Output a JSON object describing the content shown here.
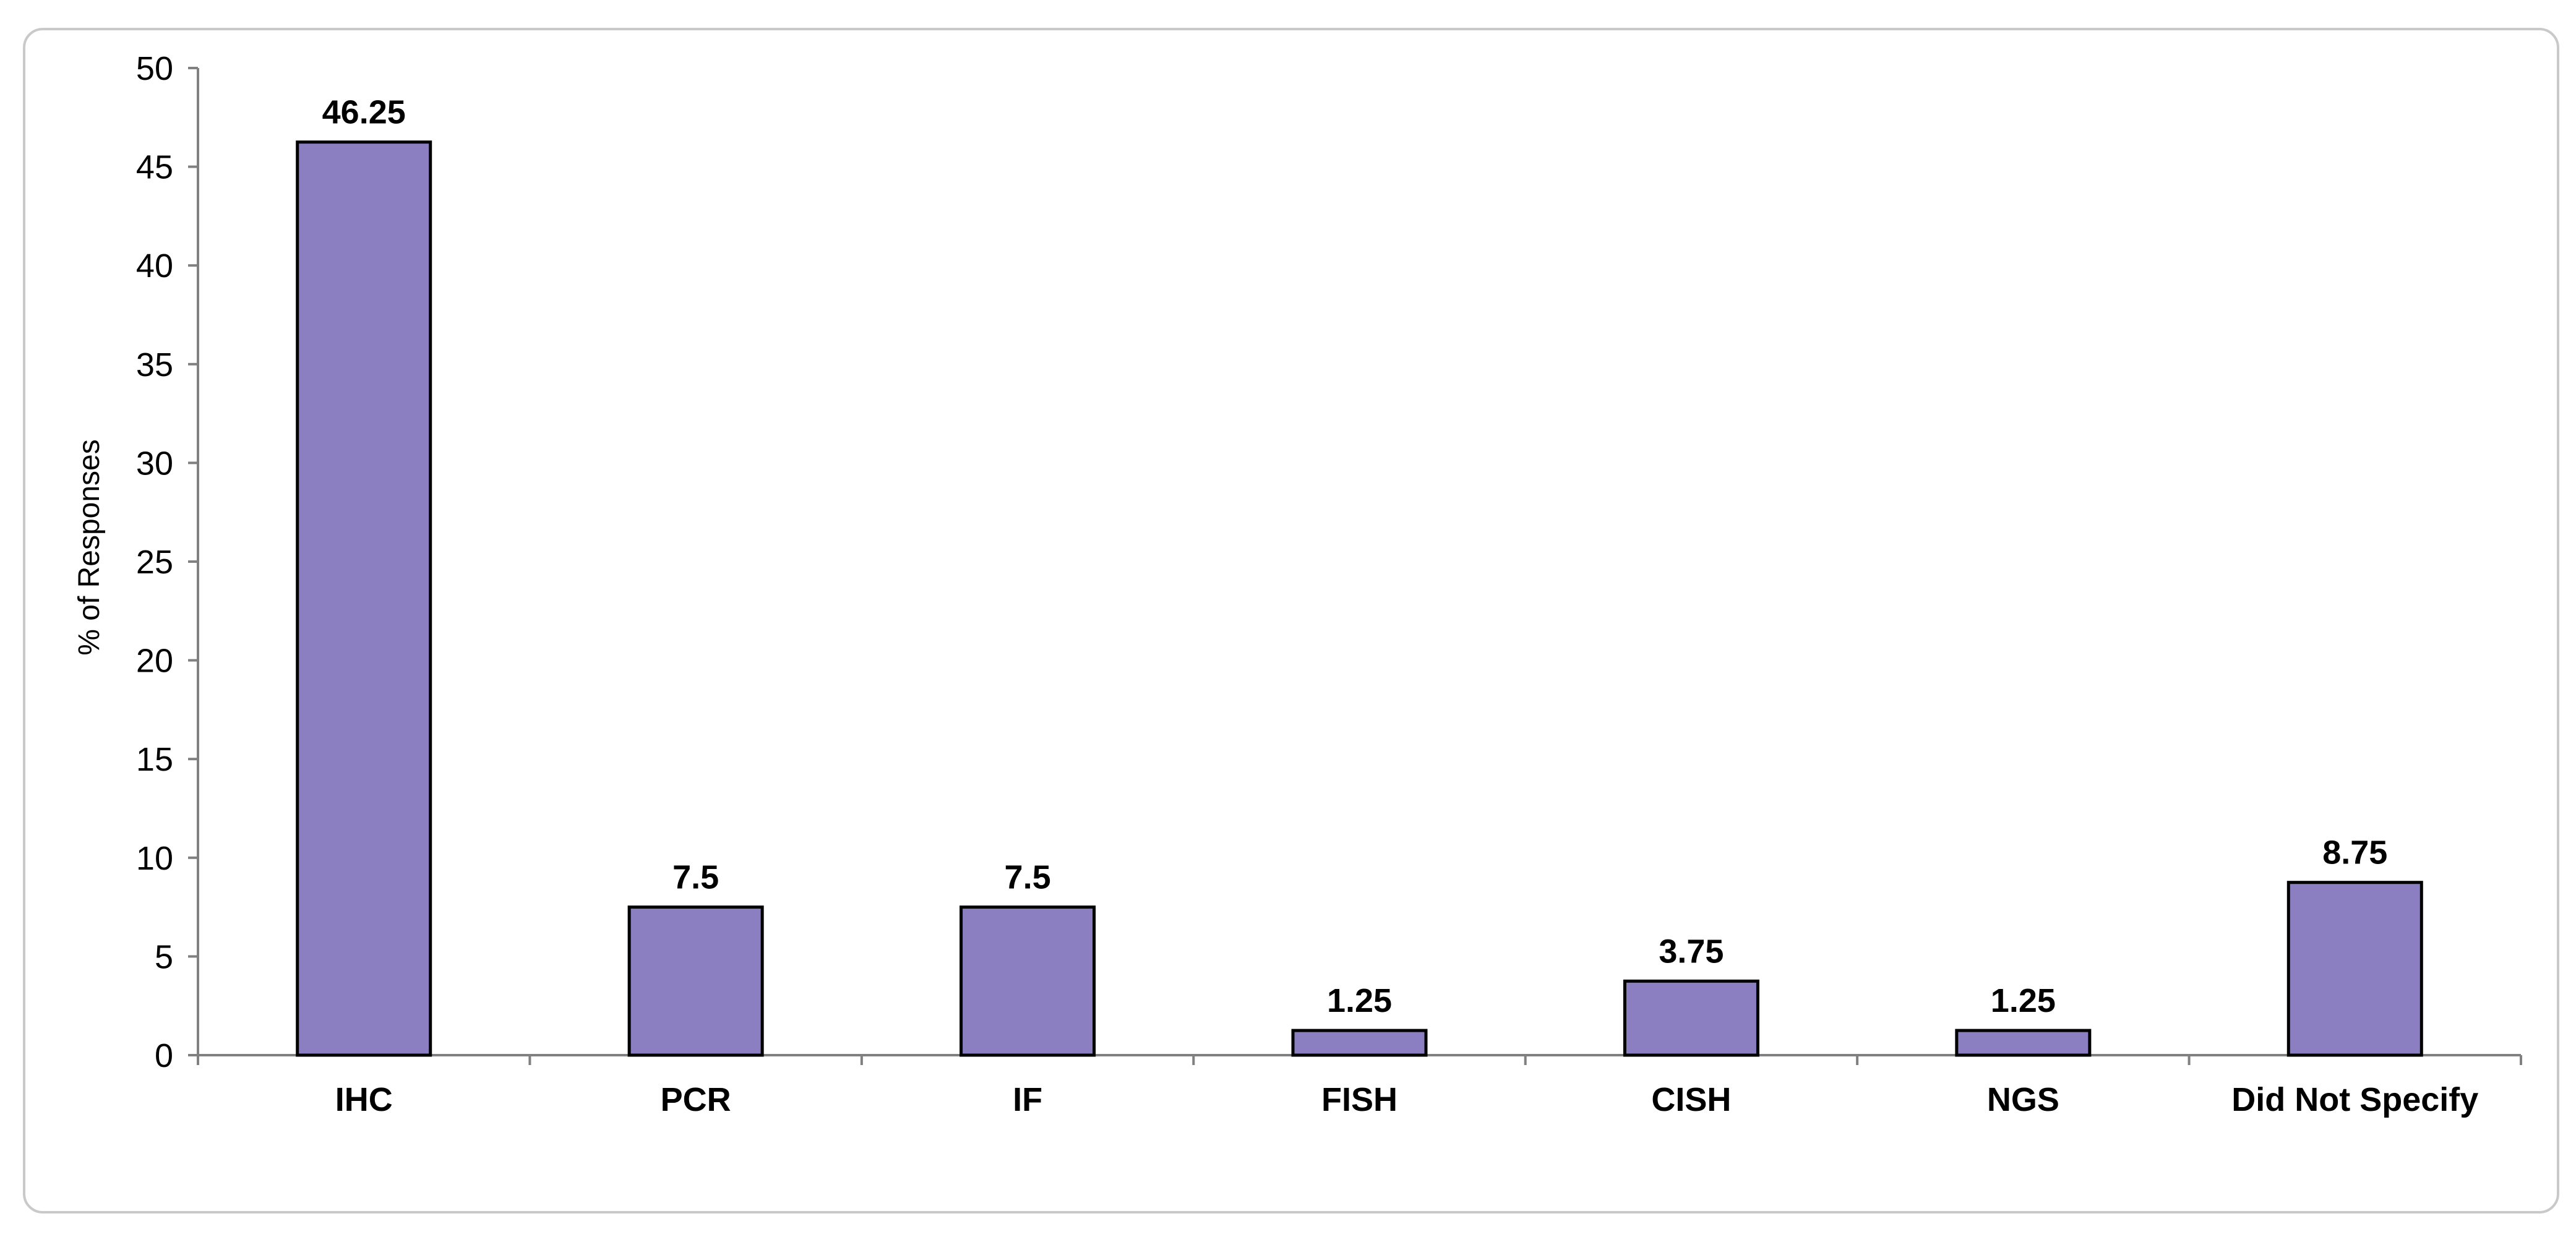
{
  "chart_data": {
    "type": "bar",
    "title": "",
    "xlabel": "",
    "ylabel": "% of Responses",
    "ylim": [
      0,
      50
    ],
    "y_ticks": [
      0,
      5,
      10,
      15,
      20,
      25,
      30,
      35,
      40,
      45,
      50
    ],
    "categories": [
      "IHC",
      "PCR",
      "IF",
      "FISH",
      "CISH",
      "NGS",
      "Did Not Specify"
    ],
    "values": [
      46.25,
      7.5,
      7.5,
      1.25,
      3.75,
      1.25,
      8.75
    ],
    "data_labels": [
      "46.25",
      "7.5",
      "7.5",
      "1.25",
      "3.75",
      "1.25",
      "8.75"
    ],
    "bar_color": "#8b7fc2",
    "bar_edge_color": "#000000",
    "grid": false,
    "legend": "none"
  }
}
